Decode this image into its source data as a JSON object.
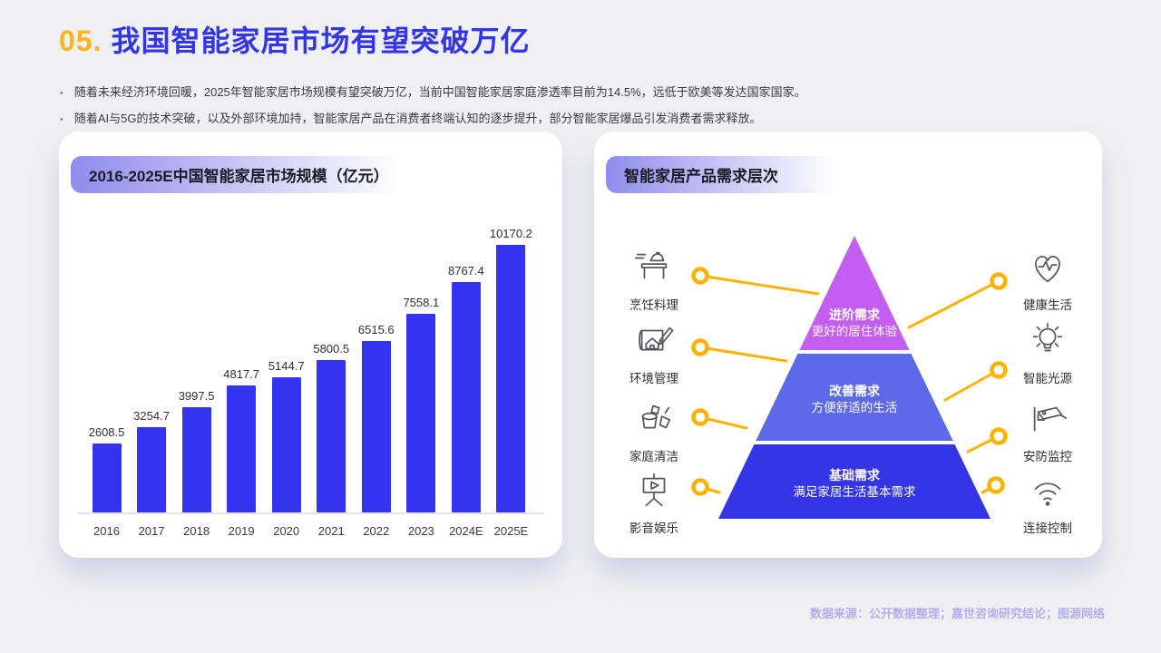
{
  "page": {
    "title_number": "05.",
    "title": "我国智能家居市场有望突破万亿",
    "bullets": [
      "随着未来经济环境回暖，2025年智能家居市场规模有望突破万亿，当前中国智能家居家庭渗透率目前为14.5%，远低于欧美等发达国家国家。",
      "随着AI与5G的技术突破，以及外部环境加持，智能家居产品在消费者终端认知的逐步提升，部分智能家居爆品引发消费者需求释放。"
    ],
    "footer": "数据来源：公开数据整理；嘉世咨询研究结论；图源网络"
  },
  "colors": {
    "title_orange": "#FFB41E",
    "title_blue": "#3336E8",
    "connector_yellow": "#FFB200",
    "header_pill_purple": "#8F8CEC",
    "footer_purple": "#B3AEF2",
    "page_background": "#F0F0F3"
  },
  "chart_card": {
    "title": "2016-2025E中国智能家居市场规模（亿元）"
  },
  "chart_data": {
    "type": "bar",
    "title": "2016-2025E中国智能家居市场规模（亿元）",
    "categories": [
      "2016",
      "2017",
      "2018",
      "2019",
      "2020",
      "2021",
      "2022",
      "2023",
      "2024E",
      "2025E"
    ],
    "values": [
      2608.5,
      3254.7,
      3997.5,
      4817.7,
      5144.7,
      5800.5,
      6515.6,
      7558.1,
      8767.4,
      10170.2
    ],
    "bar_color": "#3434F0",
    "xlabel": "",
    "ylabel": "亿元",
    "ylim": [
      0,
      10500
    ],
    "grid": false,
    "data_labels": true
  },
  "pyramid_card": {
    "title": "智能家居产品需求层次",
    "levels": [
      {
        "name": "进阶需求",
        "desc": "更好的居住体验",
        "color": "#C45EF2"
      },
      {
        "name": "改善需求",
        "desc": "方便舒适的生活",
        "color": "#5C6AEA"
      },
      {
        "name": "基础需求",
        "desc": "满足家居生活基本需求",
        "color": "#3434E8"
      }
    ],
    "left_items": [
      {
        "label": "烹饪料理",
        "icon": "cooking-icon"
      },
      {
        "label": "环境管理",
        "icon": "blueprint-icon"
      },
      {
        "label": "家庭清洁",
        "icon": "cleaning-icon"
      },
      {
        "label": "影音娱乐",
        "icon": "movie-screen-icon"
      }
    ],
    "right_items": [
      {
        "label": "健康生活",
        "icon": "heart-pulse-icon"
      },
      {
        "label": "智能光源",
        "icon": "bulb-icon"
      },
      {
        "label": "安防监控",
        "icon": "cctv-icon"
      },
      {
        "label": "连接控制",
        "icon": "wifi-icon"
      }
    ]
  }
}
